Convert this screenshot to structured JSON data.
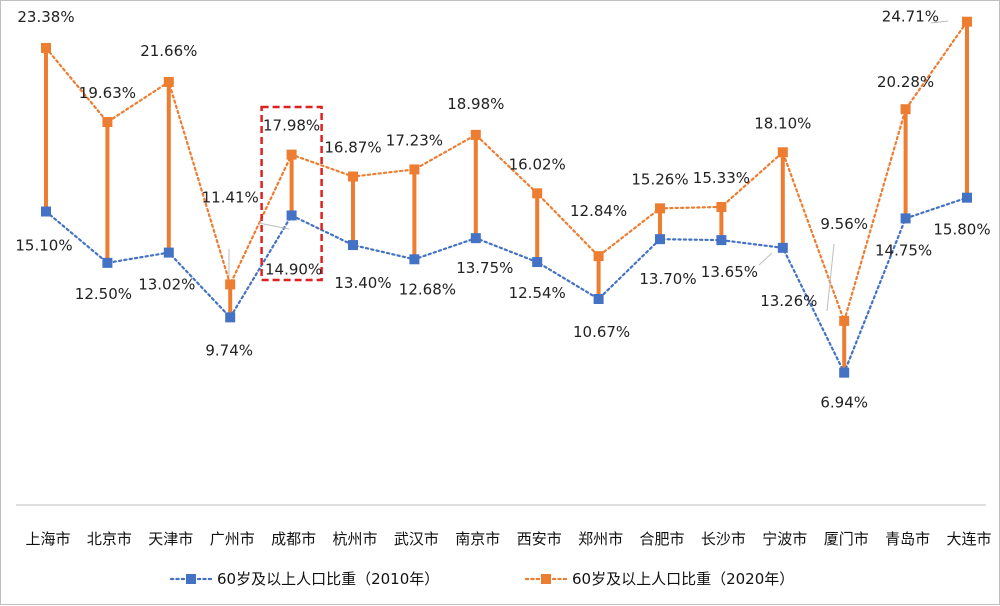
{
  "chart_data": {
    "type": "line",
    "categories": [
      "上海市",
      "北京市",
      "天津市",
      "广州市",
      "成都市",
      "杭州市",
      "武汉市",
      "南京市",
      "西安市",
      "郑州市",
      "合肥市",
      "长沙市",
      "宁波市",
      "厦门市",
      "青岛市",
      "大连市"
    ],
    "series": [
      {
        "name": "60岁及以上人口比重（2010年）",
        "values": [
          15.1,
          12.5,
          13.02,
          9.74,
          14.9,
          13.4,
          12.68,
          13.75,
          12.54,
          10.67,
          13.7,
          13.65,
          13.26,
          6.94,
          14.75,
          15.8
        ],
        "labels": [
          "15.10%",
          "12.50%",
          "13.02%",
          "9.74%",
          "14.90%",
          "13.40%",
          "12.68%",
          "13.75%",
          "12.54%",
          "10.67%",
          "13.70%",
          "13.65%",
          "13.26%",
          "6.94%",
          "14.75%",
          "15.80%"
        ],
        "color": "#4472C4",
        "line_style": "dotted"
      },
      {
        "name": "60岁及以上人口比重（2020年）",
        "values": [
          23.38,
          19.63,
          21.66,
          11.41,
          17.98,
          16.87,
          17.23,
          18.98,
          16.02,
          12.84,
          15.26,
          15.33,
          18.1,
          9.56,
          20.28,
          24.71
        ],
        "labels": [
          "23.38%",
          "19.63%",
          "21.66%",
          "11.41%",
          "17.98%",
          "16.87%",
          "17.23%",
          "18.98%",
          "16.02%",
          "12.84%",
          "15.26%",
          "15.33%",
          "18.10%",
          "9.56%",
          "20.28%",
          "24.71%"
        ],
        "color": "#ED7D31",
        "line_style": "dotted"
      }
    ],
    "connectors": {
      "color": "#ED7D31",
      "style": "solid vertical bars linking the two years per city"
    },
    "highlight": {
      "category": "成都市",
      "style": "red dashed box",
      "color": "#E02020"
    },
    "legend": {
      "position": "bottom"
    },
    "grid": false,
    "xlabel": "",
    "ylabel": "",
    "title": ""
  }
}
